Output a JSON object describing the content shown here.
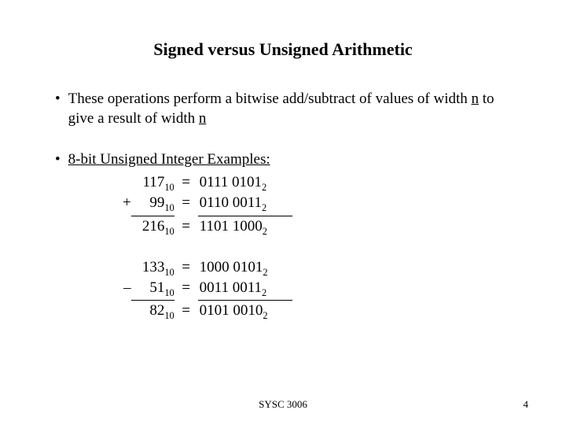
{
  "title": "Signed versus Unsigned Arithmetic",
  "bullet1_pre": "These operations perform a bitwise add/subtract of values of width ",
  "bullet1_n1": "n",
  "bullet1_mid": " to give a result of width ",
  "bullet1_n2": "n",
  "bullet2": "8-bit Unsigned Integer Examples:",
  "add": {
    "a_dec": "117",
    "a_bin": "0111 0101",
    "b_dec": "99",
    "b_bin": "0110 0011",
    "r_dec": "216",
    "r_bin": "1101 1000",
    "op": "+"
  },
  "sub": {
    "a_dec": "133",
    "a_bin": "1000 0101",
    "b_dec": "51",
    "b_bin": "0011 0011",
    "r_dec": "82",
    "r_bin": "0101 0010",
    "op": "–"
  },
  "base10": "10",
  "base2": "2",
  "eq": "=",
  "footer_course": "SYSC 3006",
  "footer_page": "4"
}
